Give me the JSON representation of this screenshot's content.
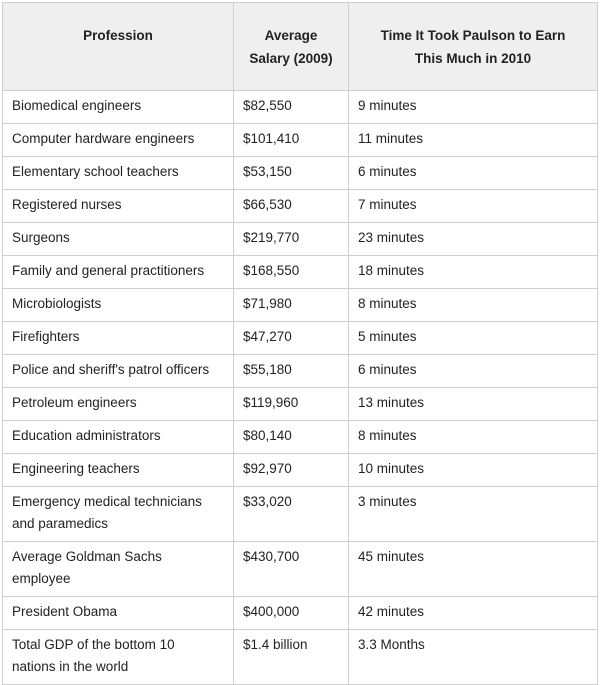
{
  "table": {
    "headers": {
      "profession": "Profession",
      "salary_line1": "Average",
      "salary_line2": "Salary (2009)",
      "time_line1": "Time It Took Paulson to Earn",
      "time_line2": "This Much in 2010"
    },
    "rows": [
      {
        "profession": "Biomedical engineers",
        "salary": "$82,550",
        "time": "9 minutes"
      },
      {
        "profession": "Computer hardware engineers",
        "salary": "$101,410",
        "time": "11 minutes"
      },
      {
        "profession": "Elementary school teachers",
        "salary": "$53,150",
        "time": "6 minutes"
      },
      {
        "profession": "Registered nurses",
        "salary": "$66,530",
        "time": "7 minutes"
      },
      {
        "profession": "Surgeons",
        "salary": "$219,770",
        "time": "23 minutes"
      },
      {
        "profession": "Family and general practitioners",
        "salary": "$168,550",
        "time": "18 minutes"
      },
      {
        "profession": "Microbiologists",
        "salary": "$71,980",
        "time": "8 minutes"
      },
      {
        "profession": "Firefighters",
        "salary": "$47,270",
        "time": "5 minutes"
      },
      {
        "profession": "Police and sheriff's patrol officers",
        "salary": "$55,180",
        "time": "6 minutes"
      },
      {
        "profession": "Petroleum engineers",
        "salary": "$119,960",
        "time": "13 minutes"
      },
      {
        "profession": "Education administrators",
        "salary": "$80,140",
        "time": "8 minutes"
      },
      {
        "profession": "Engineering teachers",
        "salary": "$92,970",
        "time": "10 minutes"
      },
      {
        "profession_line1": "Emergency medical technicians",
        "profession_line2": "and paramedics",
        "salary": "$33,020",
        "time": "3 minutes"
      },
      {
        "profession_line1": "Average Goldman Sachs",
        "profession_line2": "employee",
        "salary": "$430,700",
        "time": "45 minutes"
      },
      {
        "profession": "President Obama",
        "salary": "$400,000",
        "time": "42 minutes"
      },
      {
        "profession_line1": "Total GDP of the bottom 10",
        "profession_line2": "nations in the world",
        "salary": "$1.4 billion",
        "time": "3.3 Months"
      }
    ]
  }
}
